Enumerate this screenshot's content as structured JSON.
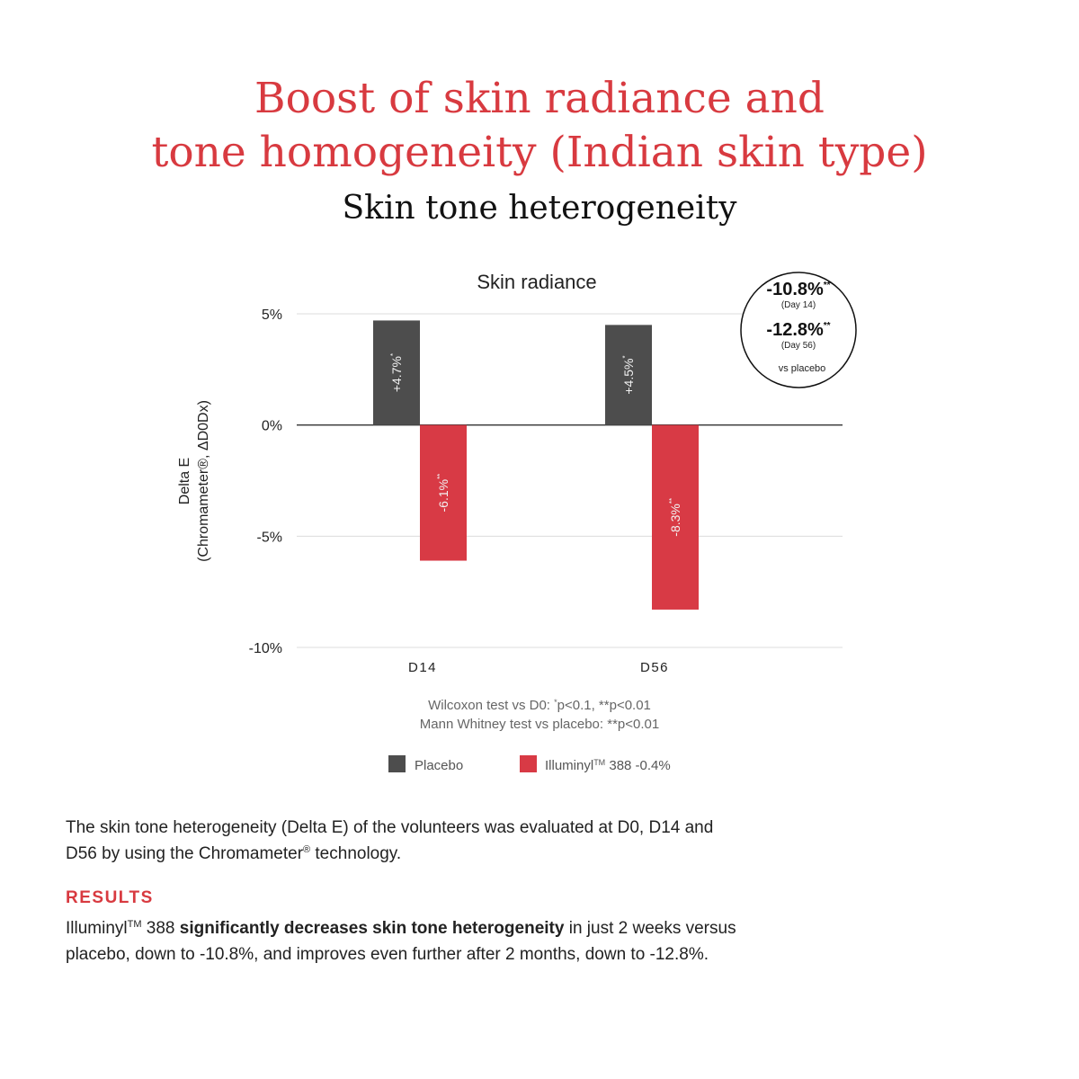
{
  "header": {
    "title_line1": "Boost of skin radiance and",
    "title_line2": "tone homogeneity (Indian skin type)",
    "subtitle": "Skin tone heterogeneity"
  },
  "chart_data": {
    "type": "bar",
    "title": "Skin radiance",
    "ylabel_line1": "Delta E",
    "ylabel_line2": "(Chromameter®, ΔD0Dx)",
    "xlabel": "",
    "ylim": [
      -10,
      5
    ],
    "yticks": [
      {
        "value": 5,
        "label": "5%"
      },
      {
        "value": 0,
        "label": "0%"
      },
      {
        "value": -5,
        "label": "-5%"
      },
      {
        "value": -10,
        "label": "-10%"
      }
    ],
    "categories": [
      "D14",
      "D56"
    ],
    "series": [
      {
        "name": "Placebo",
        "color": "#4d4d4d",
        "values": [
          4.7,
          4.5
        ],
        "labels": [
          "+4.7%",
          "+4.5%"
        ],
        "label_marks": [
          "*",
          "*"
        ]
      },
      {
        "name": "Illuminyl",
        "name_sup": "TM",
        "name_suffix": " 388 -0.4%",
        "color": "#d83a45",
        "values": [
          -6.1,
          -8.3
        ],
        "labels": [
          "-6.1%",
          "-8.3%"
        ],
        "label_marks": [
          "**",
          "**"
        ]
      }
    ],
    "grid": true,
    "legend": "bottom",
    "footnote_line1": {
      "pre": "Wilcoxon test vs D0: ",
      "mark": "*",
      "post": "p<0.1, **p<0.01"
    },
    "footnote_line2": "Mann Whitney test vs placebo: **p<0.01",
    "callout": {
      "value1": "-10.8%",
      "mark1": "**",
      "day1": "(Day 14)",
      "value2": "-12.8%",
      "mark2": "**",
      "day2": "(Day 56)",
      "note": "vs placebo"
    }
  },
  "description": {
    "pre": "The skin tone heterogeneity (Delta E) of the volunteers was evaluated at D0, D14 and D56 by using the Chromameter",
    "mark": "®",
    "post": " technology."
  },
  "results": {
    "heading": "RESULTS",
    "product": "Illuminyl",
    "product_sup": "TM",
    "product_rest": " 388 ",
    "bold": "significantly decreases skin tone heterogeneity",
    "rest": " in just 2 weeks versus placebo, down to -10.8%, and improves even further after 2 months, down to -12.8%."
  }
}
